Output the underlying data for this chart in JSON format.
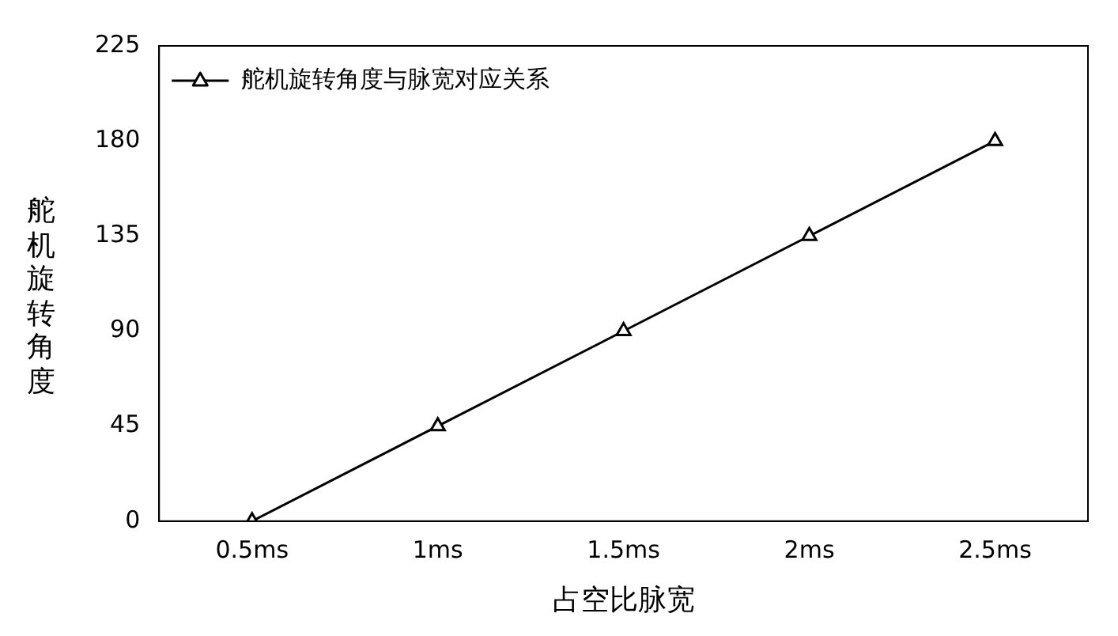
{
  "chart_data": {
    "type": "line",
    "xlabel": "占空比脉宽",
    "ylabel": "舵机旋转角度",
    "categories": [
      "0.5ms",
      "1ms",
      "1.5ms",
      "2ms",
      "2.5ms"
    ],
    "series": [
      {
        "name": "舵机旋转角度与脉宽对应关系",
        "color": "#000000",
        "values": [
          0,
          45,
          90,
          135,
          180
        ]
      }
    ],
    "ylim": [
      0,
      225
    ],
    "yticks": [
      0,
      45,
      90,
      135,
      180,
      225
    ],
    "grid": false,
    "legend": "top left",
    "marker": "triangle",
    "line_style": "solid"
  }
}
